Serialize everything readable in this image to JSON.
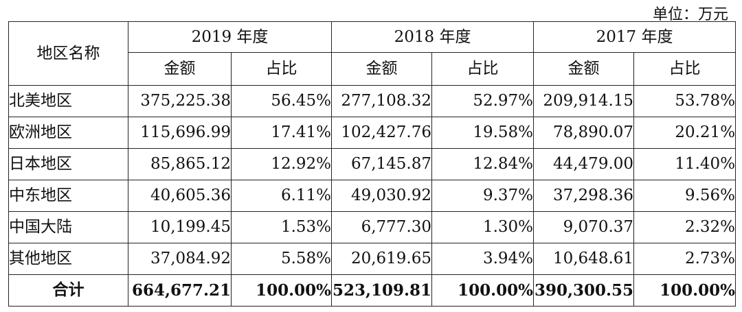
{
  "unit_label": "单位：万元",
  "header": {
    "region_col": "地区名称",
    "years": [
      "2019 年度",
      "2018 年度",
      "2017 年度"
    ],
    "amount_label": "金额",
    "ratio_label": "占比"
  },
  "rows": [
    {
      "region": "北美地区",
      "values": [
        "375,225.38",
        "56.45%",
        "277,108.32",
        "52.97%",
        "209,914.15",
        "53.78%"
      ]
    },
    {
      "region": "欧洲地区",
      "values": [
        "115,696.99",
        "17.41%",
        "102,427.76",
        "19.58%",
        "78,890.07",
        "20.21%"
      ]
    },
    {
      "region": "日本地区",
      "values": [
        "85,865.12",
        "12.92%",
        "67,145.87",
        "12.84%",
        "44,479.00",
        "11.40%"
      ]
    },
    {
      "region": "中东地区",
      "values": [
        "40,605.36",
        "6.11%",
        "49,030.92",
        "9.37%",
        "37,298.36",
        "9.56%"
      ]
    },
    {
      "region": "中国大陆",
      "values": [
        "10,199.45",
        "1.53%",
        "6,777.30",
        "1.30%",
        "9,070.37",
        "2.32%"
      ]
    },
    {
      "region": "其他地区",
      "values": [
        "37,084.92",
        "5.58%",
        "20,619.65",
        "3.94%",
        "10,648.61",
        "2.73%"
      ]
    }
  ],
  "total": {
    "label": "合计",
    "values": [
      "664,677.21",
      "100.00%",
      "523,109.81",
      "100.00%",
      "390,300.55",
      "100.00%"
    ]
  }
}
